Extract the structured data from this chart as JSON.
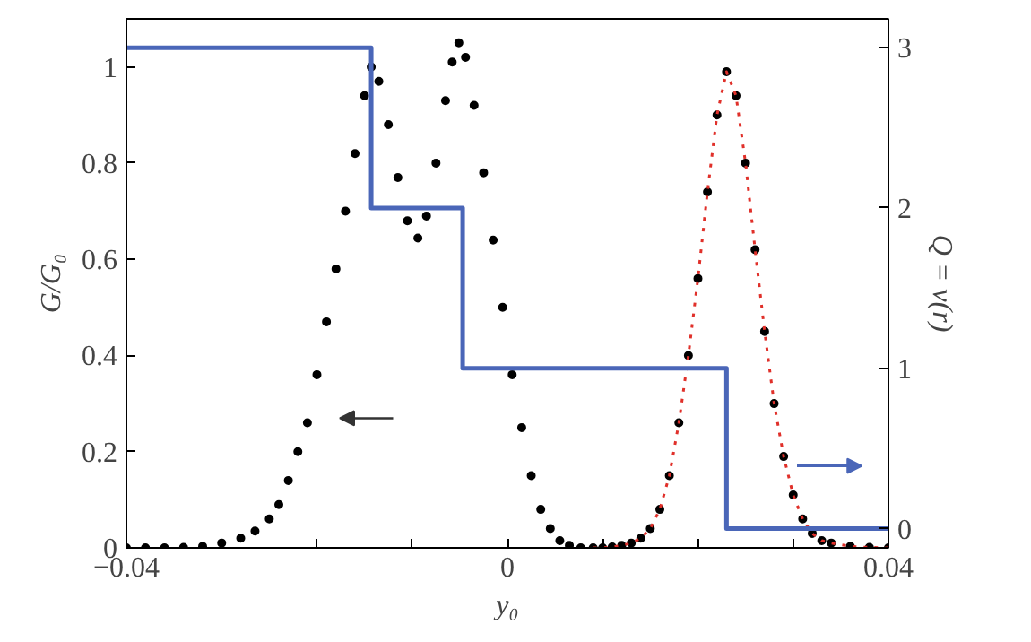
{
  "chart_data": {
    "type": "scatter",
    "xlabel": "y₀",
    "ylabel": "G/G₀",
    "y2label": "Q = ν(r)",
    "xlim": [
      -0.04,
      0.04
    ],
    "xticks": [
      {
        "value": -0.04,
        "label": "−0.04"
      },
      {
        "value": -0.03,
        "label": null
      },
      {
        "value": -0.02,
        "label": null
      },
      {
        "value": -0.01,
        "label": null
      },
      0,
      {
        "value": 0.01,
        "label": null
      },
      {
        "value": 0.02,
        "label": null
      },
      {
        "value": 0.03,
        "label": null
      },
      0.04
    ],
    "ylim": [
      0,
      1.1
    ],
    "yticks": [
      0,
      0.2,
      0.4,
      0.6,
      0.8,
      1
    ],
    "y2lim": [
      -0.12,
      3.18
    ],
    "y2ticks": [
      0,
      1,
      2,
      3
    ],
    "grid": false,
    "series": [
      {
        "marker": "circle",
        "color": "#000000",
        "x": [
          -0.04,
          -0.038,
          -0.036,
          -0.034,
          -0.032,
          -0.03,
          -0.028,
          -0.0265,
          -0.025,
          -0.024,
          -0.023,
          -0.022,
          -0.021,
          -0.02,
          -0.019,
          -0.018,
          -0.017,
          -0.016,
          -0.015,
          -0.0143,
          -0.0135,
          -0.0125,
          -0.0115,
          -0.0105,
          -0.0094,
          -0.0085,
          -0.0075,
          -0.0065,
          -0.0058,
          -0.0051,
          -0.0044,
          -0.0035,
          -0.0025,
          -0.0015,
          -0.0005,
          0.0005,
          0.0015,
          0.0025,
          0.0035,
          0.0045,
          0.0055,
          0.0065,
          0.0077,
          0.009,
          0.01,
          0.011,
          0.012,
          0.013,
          0.014,
          0.015,
          0.016,
          0.017,
          0.018,
          0.019,
          0.02,
          0.021,
          0.022,
          0.023,
          0.024,
          0.025,
          0.026,
          0.027,
          0.028,
          0.029,
          0.03,
          0.031,
          0.032,
          0.033,
          0.034,
          0.036,
          0.038,
          0.04
        ],
        "values": [
          0,
          0,
          0,
          0.001,
          0.003,
          0.01,
          0.02,
          0.035,
          0.06,
          0.09,
          0.14,
          0.2,
          0.26,
          0.36,
          0.47,
          0.58,
          0.7,
          0.82,
          0.94,
          1.0,
          0.97,
          0.88,
          0.77,
          0.68,
          0.644,
          0.69,
          0.8,
          0.93,
          1.01,
          1.05,
          1.02,
          0.92,
          0.78,
          0.64,
          0.5,
          0.36,
          0.25,
          0.15,
          0.08,
          0.04,
          0.015,
          0.005,
          0,
          0,
          0,
          0.002,
          0.005,
          0.01,
          0.02,
          0.04,
          0.08,
          0.15,
          0.26,
          0.4,
          0.56,
          0.74,
          0.9,
          0.99,
          0.94,
          0.8,
          0.62,
          0.45,
          0.3,
          0.19,
          0.11,
          0.06,
          0.03,
          0.015,
          0.01,
          0.003,
          0.001,
          0
        ]
      },
      {
        "type": "line",
        "line_style": "dotted",
        "color": "#e0302a",
        "x": [
          0.009,
          0.01,
          0.011,
          0.012,
          0.013,
          0.014,
          0.015,
          0.016,
          0.017,
          0.018,
          0.019,
          0.02,
          0.021,
          0.022,
          0.023,
          0.024,
          0.025,
          0.026,
          0.027,
          0.028,
          0.029,
          0.03,
          0.031,
          0.032,
          0.033,
          0.034,
          0.036,
          0.038,
          0.04
        ],
        "values": [
          0,
          0,
          0.002,
          0.005,
          0.01,
          0.02,
          0.04,
          0.08,
          0.15,
          0.26,
          0.4,
          0.56,
          0.74,
          0.9,
          0.99,
          0.94,
          0.8,
          0.62,
          0.45,
          0.3,
          0.19,
          0.11,
          0.06,
          0.03,
          0.015,
          0.01,
          0.003,
          0.001,
          0
        ]
      },
      {
        "type": "step",
        "axis": "y2",
        "color": "#4a66b8",
        "x": [
          -0.04,
          -0.0143,
          -0.0047,
          0.023,
          0.04
        ],
        "values": [
          3,
          2,
          1,
          0,
          0
        ]
      }
    ]
  }
}
